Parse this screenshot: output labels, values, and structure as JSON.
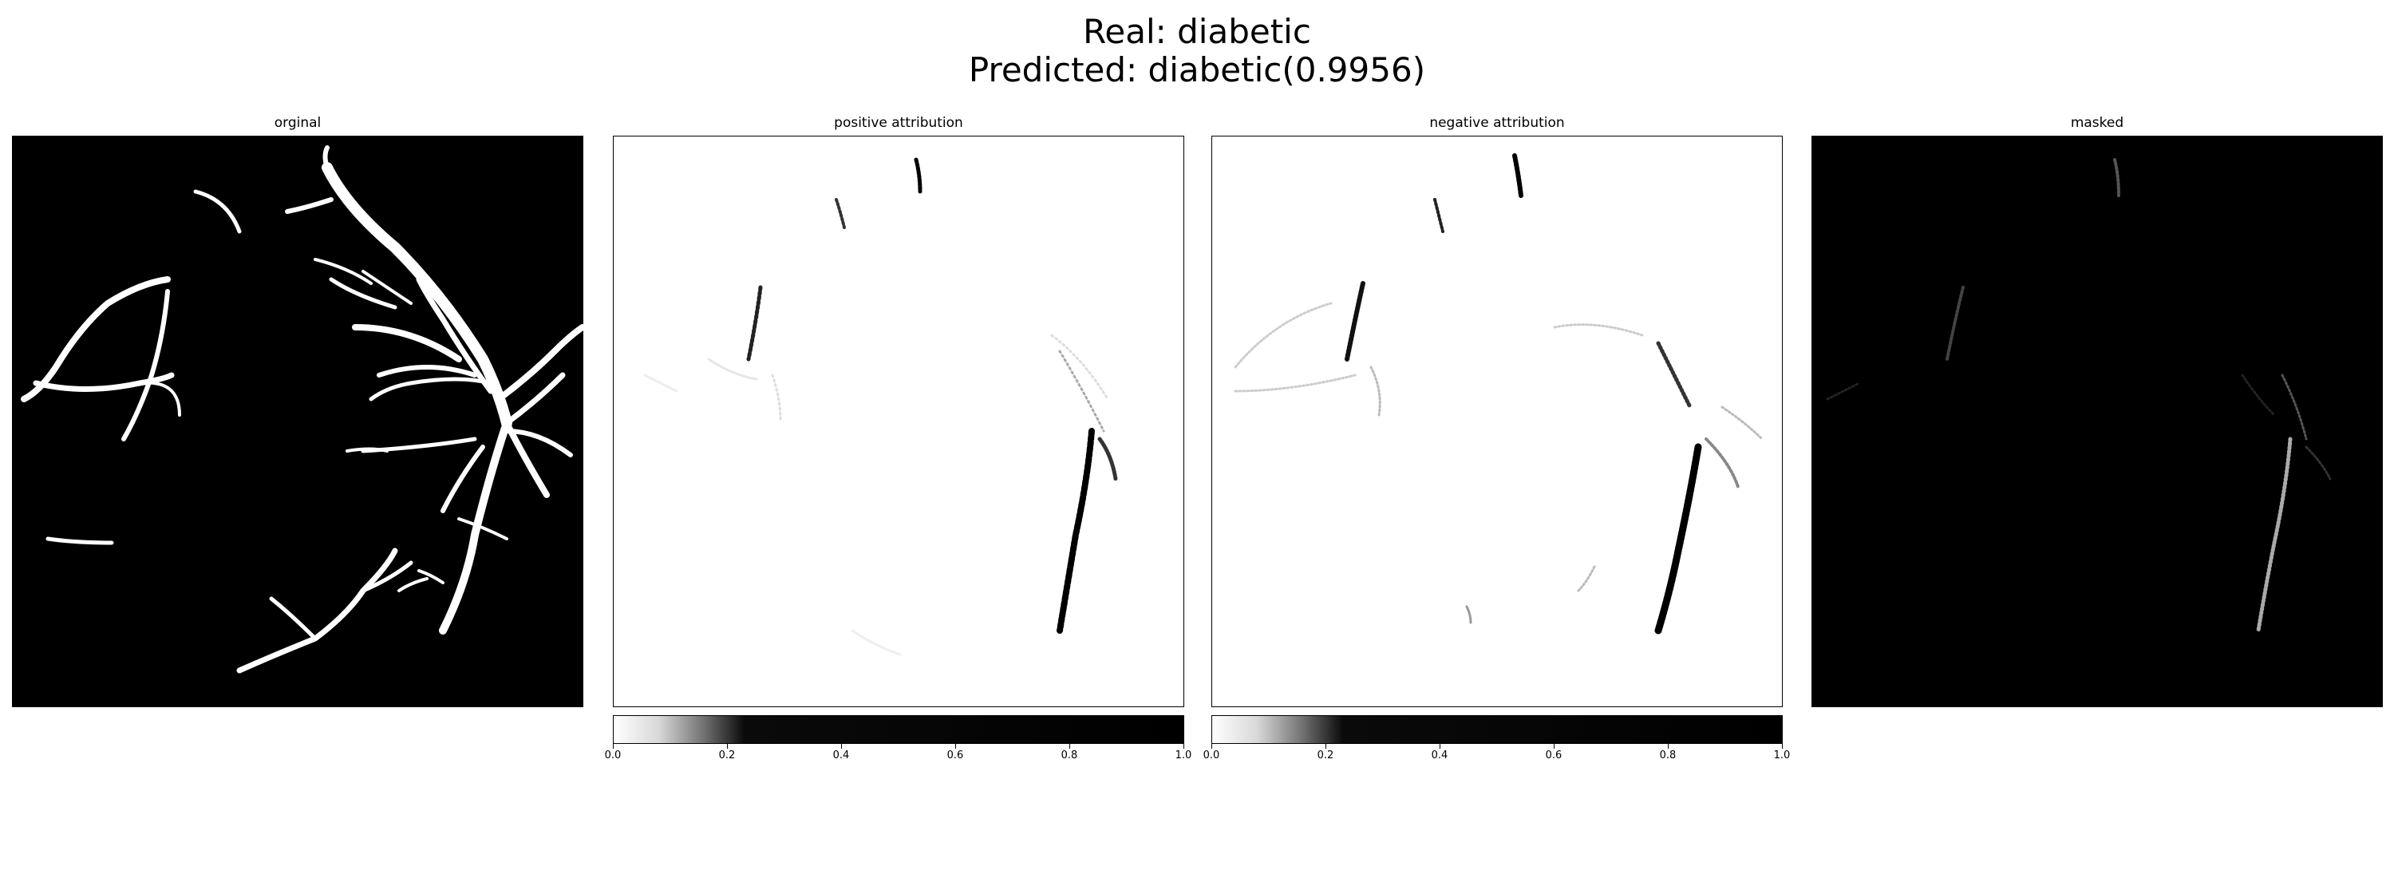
{
  "figure": {
    "title_line1": "Real: diabetic",
    "title_line2": "Predicted: diabetic(0.9956)"
  },
  "panels": [
    {
      "title": "orginal",
      "background": "#000000",
      "foreground": "#ffffff"
    },
    {
      "title": "positive attribution",
      "background": "#ffffff",
      "foreground": "#000000"
    },
    {
      "title": "negative attribution",
      "background": "#ffffff",
      "foreground": "#000000"
    },
    {
      "title": "masked",
      "background": "#000000",
      "foreground": "#ffffff"
    }
  ],
  "colorbar": {
    "ticks": [
      "0.0",
      "0.2",
      "0.4",
      "0.6",
      "0.8",
      "1.0"
    ],
    "cmap": "gray_r",
    "range": [
      0,
      1
    ]
  }
}
